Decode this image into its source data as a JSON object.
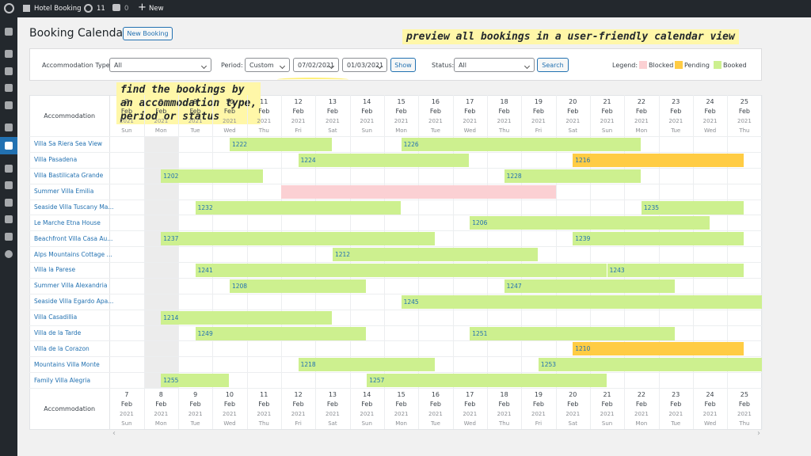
{
  "admin_bar": {
    "site": "Hotel Booking",
    "updates": 11,
    "comments": 0,
    "new": "New"
  },
  "header": {
    "title": "Booking Calendar",
    "button": "New Booking"
  },
  "callouts": [
    {
      "lines": [
        "preview all bookings in a user-friendly calendar view"
      ]
    },
    {
      "lines": [
        "find the bookings by",
        "an accommodation type,",
        "period or status"
      ]
    }
  ],
  "filters": {
    "accommodation_type_label": "Accommodation Type:",
    "accommodation_type": "All",
    "period_label": "Period:",
    "period": "Custom",
    "date_from": "07/02/2021",
    "date_to": "01/03/2021",
    "show_button": "Show",
    "status_label": "Status:",
    "status": "All",
    "search_button": "Search",
    "legend_label": "Legend:",
    "legend": [
      "Blocked",
      "Pending",
      "Booked"
    ]
  },
  "calendar": {
    "column_header": "Accommodation",
    "month": "Feb",
    "year": 2021,
    "days": [
      {
        "day": 7,
        "weekday": "Sun"
      },
      {
        "day": 8,
        "weekday": "Mon"
      },
      {
        "day": 9,
        "weekday": "Tue"
      },
      {
        "day": 10,
        "weekday": "Wed"
      },
      {
        "day": 11,
        "weekday": "Thu"
      },
      {
        "day": 12,
        "weekday": "Fri"
      },
      {
        "day": 13,
        "weekday": "Sat"
      },
      {
        "day": 14,
        "weekday": "Sun"
      },
      {
        "day": 15,
        "weekday": "Mon"
      },
      {
        "day": 16,
        "weekday": "Tue"
      },
      {
        "day": 17,
        "weekday": "Wed"
      },
      {
        "day": 18,
        "weekday": "Thu"
      },
      {
        "day": 19,
        "weekday": "Fri"
      },
      {
        "day": 20,
        "weekday": "Sat"
      },
      {
        "day": 21,
        "weekday": "Sun"
      },
      {
        "day": 22,
        "weekday": "Mon"
      },
      {
        "day": 23,
        "weekday": "Tue"
      },
      {
        "day": 24,
        "weekday": "Wed"
      },
      {
        "day": 25,
        "weekday": "Thu"
      }
    ],
    "rows": [
      {
        "name": "Villa Sa Riera Sea View",
        "bookings": [
          "1222",
          "1226"
        ]
      },
      {
        "name": "Villa Pasadena",
        "bookings": [
          "1224",
          "1216"
        ]
      },
      {
        "name": "Villa Bastilicata Grande",
        "bookings": [
          "1202",
          "1228"
        ]
      },
      {
        "name": "Summer Villa Emilia",
        "bookings": []
      },
      {
        "name": "Seaside Villa Tuscany Ma...",
        "bookings": [
          "1232",
          "1235"
        ]
      },
      {
        "name": "Le Marche Etna House",
        "bookings": [
          "1206"
        ]
      },
      {
        "name": "Beachfront Villa Casa Au...",
        "bookings": [
          "1237",
          "1239"
        ]
      },
      {
        "name": "Alps Mountains Cottage ...",
        "bookings": [
          "1212"
        ]
      },
      {
        "name": "Villa la Parese",
        "bookings": [
          "1241",
          "1243"
        ]
      },
      {
        "name": "Summer Villa Alexandria",
        "bookings": [
          "1208",
          "1247"
        ]
      },
      {
        "name": "Seaside Villa Egardo Apa...",
        "bookings": [
          "1245"
        ]
      },
      {
        "name": "Villa Casadillia",
        "bookings": [
          "1214"
        ]
      },
      {
        "name": "Villa de la Tarde",
        "bookings": [
          "1249",
          "1251"
        ]
      },
      {
        "name": "Villa de la Corazon",
        "bookings": [
          "1210"
        ]
      },
      {
        "name": "Mountains Villa Monte",
        "bookings": [
          "1218",
          "1253"
        ]
      },
      {
        "name": "Family Villa Alegria",
        "bookings": [
          "1255",
          "1257"
        ]
      }
    ]
  }
}
